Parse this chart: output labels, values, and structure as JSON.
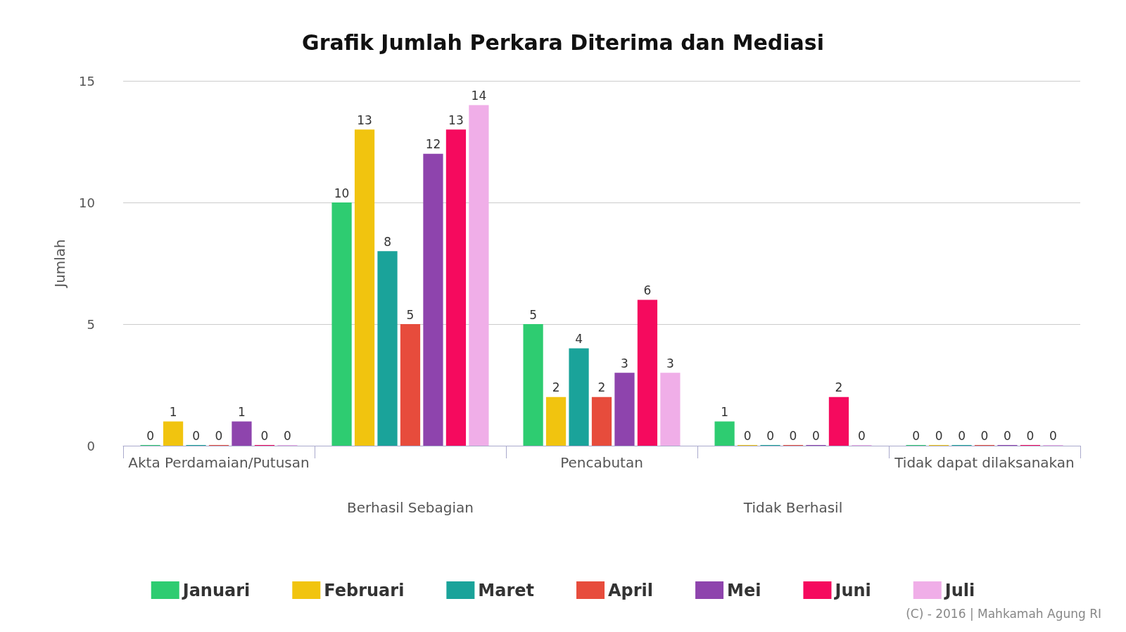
{
  "chart_data": {
    "type": "bar",
    "title": "Grafik Jumlah Perkara Diterima dan Mediasi",
    "ylabel": "Jumlah",
    "categories": [
      "Akta Perdamaian/Putusan",
      "Berhasil Sebagian",
      "Pencabutan",
      "Tidak Berhasil",
      "Tidak dapat dilaksanakan"
    ],
    "series": [
      {
        "name": "Januari",
        "color": "#2ecc71",
        "values": [
          0,
          10,
          5,
          1,
          0
        ]
      },
      {
        "name": "Februari",
        "color": "#f1c40f",
        "values": [
          1,
          13,
          2,
          0,
          0
        ]
      },
      {
        "name": "Maret",
        "color": "#1aa39a",
        "values": [
          0,
          8,
          4,
          0,
          0
        ]
      },
      {
        "name": "April",
        "color": "#e74c3c",
        "values": [
          0,
          5,
          2,
          0,
          0
        ]
      },
      {
        "name": "Mei",
        "color": "#8e44ad",
        "values": [
          1,
          12,
          3,
          0,
          0
        ]
      },
      {
        "name": "Juni",
        "color": "#f50a5e",
        "values": [
          0,
          13,
          6,
          2,
          0
        ]
      },
      {
        "name": "Juli",
        "color": "#f0aee8",
        "values": [
          0,
          14,
          3,
          0,
          0
        ]
      }
    ],
    "ylim": [
      0,
      15
    ],
    "yticks": [
      0,
      5,
      10,
      15
    ],
    "grid": "y",
    "legend": "bottom",
    "data_labels": true,
    "annotations": [
      "(C) - 2016 | Mahkamah Agung RI"
    ]
  }
}
